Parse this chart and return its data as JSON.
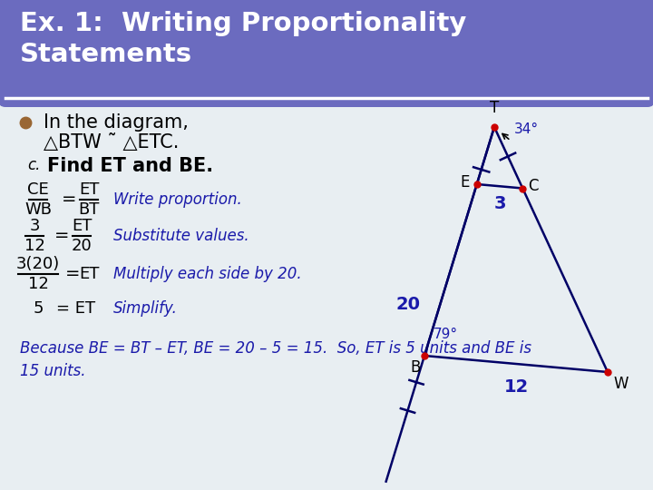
{
  "title_text": "Ex. 1:  Writing Proportionality\nStatements",
  "title_bg": "#6b6bbf",
  "title_fg": "#ffffff",
  "slide_bg": "#e8eef2",
  "border_color": "#7799aa",
  "bullet_color": "#996633",
  "bullet_text_line1": "In the diagram,",
  "bullet_text_line2": "△BTW ˜ △ETC.",
  "c_label": "c.",
  "c_text": "Find ET and BE.",
  "step1_desc": "Write proportion.",
  "step2_desc": "Substitute values.",
  "step3_desc": "Multiply each side by 20.",
  "step4_desc": "Simplify.",
  "conclusion": "Because BE = BT – ET, BE = 20 – 5 = 15.  So, ET is 5 units and BE is\n15 units.",
  "diagram_color": "#000066",
  "dot_color": "#cc0000",
  "text_blue": "#1a1aaa",
  "angle34": "34°",
  "angle79": "79°",
  "label_T": "T",
  "label_E": "E",
  "label_C": "C",
  "label_B": "B",
  "label_W": "W",
  "val_20": "20",
  "val_3": "3",
  "val_12": "12"
}
